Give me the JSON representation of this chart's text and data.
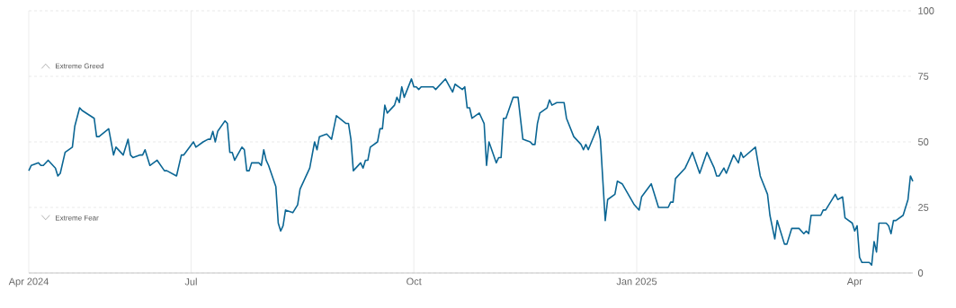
{
  "chart_data": {
    "type": "line",
    "color": "#0b6694",
    "grid": true,
    "xlim": [
      "2024-04-25",
      "2025-04-25"
    ],
    "xticks": [
      {
        "value": "2024-04-25",
        "label": "Apr 2024"
      },
      {
        "value": "2024-07-01",
        "label": "Jul"
      },
      {
        "value": "2024-10-01",
        "label": "Oct"
      },
      {
        "value": "2025-01-01",
        "label": "Jan 2025"
      },
      {
        "value": "2025-04-01",
        "label": "Apr"
      }
    ],
    "ylim": [
      0,
      100
    ],
    "yticks": [
      0,
      25,
      50,
      75,
      100
    ],
    "annotations": [
      "Extreme Greed",
      "Extreme Fear"
    ],
    "x": [
      "2024-04-25",
      "2024-04-26",
      "2024-04-29",
      "2024-04-30",
      "2024-05-01",
      "2024-05-03",
      "2024-05-06",
      "2024-05-07",
      "2024-05-08",
      "2024-05-10",
      "2024-05-13",
      "2024-05-14",
      "2024-05-16",
      "2024-05-17",
      "2024-05-22",
      "2024-05-23",
      "2024-05-24",
      "2024-05-28",
      "2024-05-30",
      "2024-05-31",
      "2024-06-03",
      "2024-06-05",
      "2024-06-06",
      "2024-06-07",
      "2024-06-10",
      "2024-06-11",
      "2024-06-12",
      "2024-06-14",
      "2024-06-17",
      "2024-06-20",
      "2024-06-21",
      "2024-06-25",
      "2024-06-27",
      "2024-06-28",
      "2024-07-02",
      "2024-07-03",
      "2024-07-06",
      "2024-07-08",
      "2024-07-09",
      "2024-07-10",
      "2024-07-11",
      "2024-07-12",
      "2024-07-15",
      "2024-07-16",
      "2024-07-17",
      "2024-07-18",
      "2024-07-19",
      "2024-07-22",
      "2024-07-23",
      "2024-07-24",
      "2024-07-25",
      "2024-07-26",
      "2024-07-29",
      "2024-07-30",
      "2024-07-31",
      "2024-08-01",
      "2024-08-02",
      "2024-08-05",
      "2024-08-06",
      "2024-08-07",
      "2024-08-08",
      "2024-08-09",
      "2024-08-12",
      "2024-08-14",
      "2024-08-15",
      "2024-08-19",
      "2024-08-21",
      "2024-08-22",
      "2024-08-23",
      "2024-08-26",
      "2024-08-28",
      "2024-08-30",
      "2024-09-03",
      "2024-09-04",
      "2024-09-05",
      "2024-09-06",
      "2024-09-09",
      "2024-09-10",
      "2024-09-11",
      "2024-09-12",
      "2024-09-13",
      "2024-09-16",
      "2024-09-17",
      "2024-09-18",
      "2024-09-19",
      "2024-09-20",
      "2024-09-23",
      "2024-09-24",
      "2024-09-25",
      "2024-09-26",
      "2024-09-27",
      "2024-09-30",
      "2024-10-01",
      "2024-10-02",
      "2024-10-03",
      "2024-10-04",
      "2024-10-06",
      "2024-10-08",
      "2024-10-09",
      "2024-10-10",
      "2024-10-14",
      "2024-10-17",
      "2024-10-18",
      "2024-10-21",
      "2024-10-22",
      "2024-10-23",
      "2024-10-24",
      "2024-10-25",
      "2024-10-28",
      "2024-10-29",
      "2024-10-30",
      "2024-10-31",
      "2024-11-01",
      "2024-11-04",
      "2024-11-05",
      "2024-11-06",
      "2024-11-07",
      "2024-11-08",
      "2024-11-11",
      "2024-11-13",
      "2024-11-15",
      "2024-11-18",
      "2024-11-19",
      "2024-11-20",
      "2024-11-21",
      "2024-11-22",
      "2024-11-25",
      "2024-11-26",
      "2024-11-27",
      "2024-11-29",
      "2024-12-02",
      "2024-12-03",
      "2024-12-06",
      "2024-12-09",
      "2024-12-10",
      "2024-12-11",
      "2024-12-12",
      "2024-12-16",
      "2024-12-17",
      "2024-12-19",
      "2024-12-20",
      "2024-12-23",
      "2024-12-24",
      "2024-12-26",
      "2024-12-31",
      "2025-01-02",
      "2025-01-03",
      "2025-01-07",
      "2025-01-10",
      "2025-01-14",
      "2025-01-15",
      "2025-01-16",
      "2025-01-17",
      "2025-01-21",
      "2025-01-24",
      "2025-01-27",
      "2025-01-30",
      "2025-02-02",
      "2025-02-03",
      "2025-02-04",
      "2025-02-06",
      "2025-02-07",
      "2025-02-10",
      "2025-02-12",
      "2025-02-13",
      "2025-02-14",
      "2025-02-19",
      "2025-02-21",
      "2025-02-24",
      "2025-02-25",
      "2025-02-27",
      "2025-02-28",
      "2025-03-03",
      "2025-03-04",
      "2025-03-06",
      "2025-03-09",
      "2025-03-11",
      "2025-03-12",
      "2025-03-13",
      "2025-03-14",
      "2025-03-17",
      "2025-03-18",
      "2025-03-19",
      "2025-03-20",
      "2025-03-24",
      "2025-03-25",
      "2025-03-27",
      "2025-03-28",
      "2025-03-31",
      "2025-04-01",
      "2025-04-02",
      "2025-04-03",
      "2025-04-04",
      "2025-04-07",
      "2025-04-08",
      "2025-04-09",
      "2025-04-10",
      "2025-04-11",
      "2025-04-14",
      "2025-04-15",
      "2025-04-16",
      "2025-04-17",
      "2025-04-18",
      "2025-04-21",
      "2025-04-23",
      "2025-04-24",
      "2025-04-25"
    ],
    "values": [
      39,
      41,
      42,
      41,
      41,
      43,
      40,
      37,
      38,
      46,
      48,
      56,
      63,
      62,
      59,
      52,
      52,
      55,
      45,
      48,
      45,
      51,
      45,
      44,
      45,
      45,
      47,
      41,
      43,
      39,
      39,
      37,
      45,
      45,
      50,
      48,
      50,
      51,
      51,
      54,
      50,
      54,
      58,
      57,
      46,
      46,
      43,
      48,
      47,
      39,
      39,
      42,
      42,
      41,
      47,
      43,
      41,
      33,
      19,
      16,
      18,
      24,
      23,
      26,
      32,
      40,
      50,
      47,
      52,
      53,
      51,
      60,
      57,
      57,
      51,
      39,
      42,
      40,
      43,
      43,
      48,
      50,
      55,
      55,
      64,
      61,
      64,
      67,
      65,
      71,
      67,
      74,
      71,
      71,
      70,
      71,
      71,
      71,
      71,
      70,
      74,
      69,
      72,
      70,
      71,
      63,
      63,
      59,
      61,
      59,
      57,
      41,
      50,
      42,
      44,
      44,
      59,
      59,
      67,
      67,
      51,
      50,
      49,
      49,
      57,
      61,
      63,
      66,
      64,
      65,
      65,
      59,
      52,
      49,
      47,
      49,
      47,
      56,
      51,
      20,
      28,
      30,
      35,
      34,
      26,
      24,
      29,
      34,
      25,
      25,
      27,
      27,
      36,
      40,
      46,
      38,
      46,
      40,
      37,
      37,
      40,
      38,
      45,
      42,
      46,
      44,
      48,
      37,
      30,
      22,
      13,
      20,
      11,
      11,
      17,
      17,
      15,
      16,
      15,
      22,
      22,
      22,
      24,
      24,
      30,
      28,
      29,
      21,
      19,
      16,
      18,
      6,
      4,
      4,
      3,
      12,
      8,
      19,
      19,
      18,
      15,
      20,
      20,
      22,
      28,
      37,
      35
    ]
  }
}
